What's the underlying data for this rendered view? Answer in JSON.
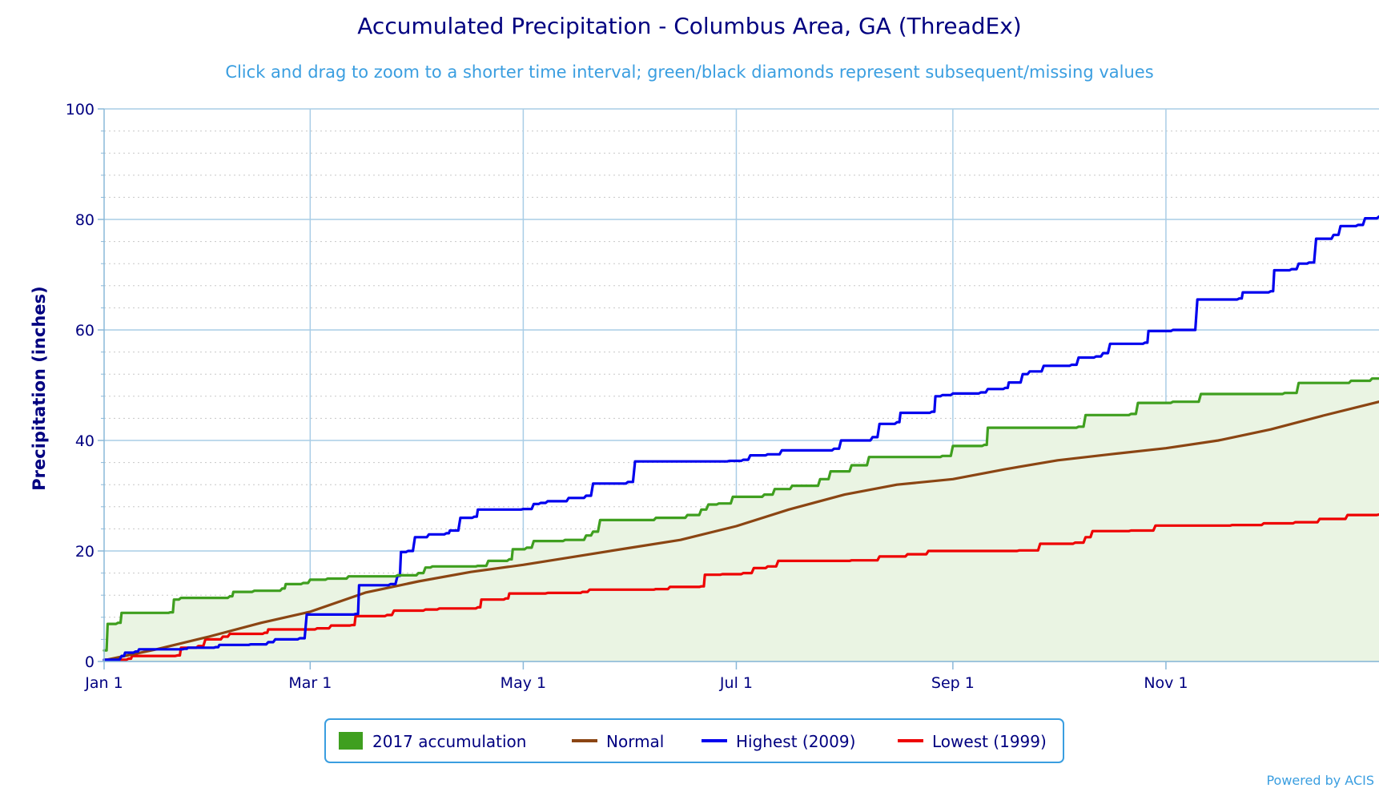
{
  "chart_data": {
    "type": "line",
    "title": "Accumulated Precipitation - Columbus Area, GA (ThreadEx)",
    "subtitle": "Click and drag to zoom to a shorter time interval; green/black diamonds represent subsequent/missing values",
    "ylabel": "Precipitation (inches)",
    "xlabel": "",
    "ylim": [
      0,
      100
    ],
    "y_ticks": [
      0,
      20,
      40,
      60,
      80,
      100
    ],
    "x_ticks": [
      {
        "label": "Jan 1",
        "day": 0
      },
      {
        "label": "Mar 1",
        "day": 59
      },
      {
        "label": "May 1",
        "day": 120
      },
      {
        "label": "Jul 1",
        "day": 181
      },
      {
        "label": "Sep 1",
        "day": 243
      },
      {
        "label": "Nov 1",
        "day": 304
      }
    ],
    "xlim_days": [
      0,
      365
    ],
    "grid": true,
    "legend_position": "bottom-center",
    "series": [
      {
        "name": "2017 accumulation",
        "style": "area-step",
        "color": "#3f9f1f",
        "fill": "#eaf4e3",
        "points": [
          [
            0,
            2
          ],
          [
            1,
            6.8
          ],
          [
            4,
            7
          ],
          [
            5,
            8.8
          ],
          [
            19,
            8.9
          ],
          [
            20,
            11.2
          ],
          [
            22,
            11.5
          ],
          [
            36,
            11.8
          ],
          [
            37,
            12.6
          ],
          [
            43,
            12.8
          ],
          [
            51,
            13.2
          ],
          [
            52,
            14
          ],
          [
            57,
            14.2
          ],
          [
            59,
            14.8
          ],
          [
            64,
            15
          ],
          [
            70,
            15.4
          ],
          [
            84,
            15.6
          ],
          [
            90,
            16
          ],
          [
            92,
            17
          ],
          [
            94,
            17.2
          ],
          [
            107,
            17.3
          ],
          [
            110,
            18.2
          ],
          [
            116,
            18.5
          ],
          [
            117,
            20.3
          ],
          [
            121,
            20.6
          ],
          [
            123,
            21.8
          ],
          [
            132,
            22
          ],
          [
            138,
            22.8
          ],
          [
            140,
            23.5
          ],
          [
            142,
            25.6
          ],
          [
            158,
            26
          ],
          [
            167,
            26.5
          ],
          [
            171,
            27.5
          ],
          [
            173,
            28.4
          ],
          [
            176,
            28.6
          ],
          [
            180,
            29.8
          ],
          [
            189,
            30.2
          ],
          [
            192,
            31.2
          ],
          [
            197,
            31.8
          ],
          [
            205,
            33
          ],
          [
            208,
            34.4
          ],
          [
            214,
            35.5
          ],
          [
            219,
            37
          ],
          [
            240,
            37.2
          ],
          [
            243,
            39
          ],
          [
            252,
            39.2
          ],
          [
            253,
            42.3
          ],
          [
            279,
            42.5
          ],
          [
            281,
            44.6
          ],
          [
            294,
            44.8
          ],
          [
            296,
            46.8
          ],
          [
            306,
            47
          ],
          [
            314,
            48.4
          ],
          [
            338,
            48.6
          ],
          [
            342,
            50.4
          ],
          [
            357,
            50.8
          ],
          [
            363,
            51.2
          ],
          [
            365,
            51.2
          ]
        ]
      },
      {
        "name": "Normal",
        "style": "line",
        "color": "#8b4513",
        "points": [
          [
            0,
            0.2
          ],
          [
            15,
            2.2
          ],
          [
            30,
            4.5
          ],
          [
            45,
            7
          ],
          [
            59,
            9
          ],
          [
            75,
            12.5
          ],
          [
            90,
            14.5
          ],
          [
            105,
            16.2
          ],
          [
            120,
            17.5
          ],
          [
            135,
            19
          ],
          [
            150,
            20.5
          ],
          [
            165,
            22
          ],
          [
            181,
            24.5
          ],
          [
            196,
            27.5
          ],
          [
            212,
            30.2
          ],
          [
            227,
            32
          ],
          [
            243,
            33
          ],
          [
            258,
            34.8
          ],
          [
            273,
            36.4
          ],
          [
            288,
            37.5
          ],
          [
            304,
            38.6
          ],
          [
            319,
            40
          ],
          [
            334,
            42
          ],
          [
            349,
            44.5
          ],
          [
            365,
            47
          ]
        ]
      },
      {
        "name": "Highest (2009)",
        "style": "step",
        "color": "#0000ee",
        "points": [
          [
            0,
            0.3
          ],
          [
            5,
            1
          ],
          [
            6,
            1.6
          ],
          [
            9,
            1.8
          ],
          [
            10,
            2.2
          ],
          [
            23,
            2.3
          ],
          [
            24,
            2.5
          ],
          [
            32,
            2.6
          ],
          [
            33,
            3
          ],
          [
            42,
            3.1
          ],
          [
            47,
            3.5
          ],
          [
            49,
            4
          ],
          [
            56,
            4.2
          ],
          [
            58,
            8.5
          ],
          [
            72,
            8.6
          ],
          [
            73,
            13.8
          ],
          [
            82,
            14
          ],
          [
            84,
            15.5
          ],
          [
            85,
            19.8
          ],
          [
            87,
            20
          ],
          [
            89,
            22.5
          ],
          [
            93,
            23
          ],
          [
            98,
            23.2
          ],
          [
            99,
            23.7
          ],
          [
            102,
            26
          ],
          [
            106,
            26.2
          ],
          [
            107,
            27.5
          ],
          [
            120,
            27.6
          ],
          [
            123,
            28.5
          ],
          [
            125,
            28.7
          ],
          [
            127,
            29
          ],
          [
            133,
            29.6
          ],
          [
            138,
            30
          ],
          [
            140,
            32.2
          ],
          [
            150,
            32.5
          ],
          [
            152,
            36.2
          ],
          [
            179,
            36.3
          ],
          [
            183,
            36.5
          ],
          [
            185,
            37.3
          ],
          [
            190,
            37.5
          ],
          [
            194,
            38.2
          ],
          [
            209,
            38.5
          ],
          [
            211,
            40
          ],
          [
            220,
            40.6
          ],
          [
            222,
            43
          ],
          [
            227,
            43.3
          ],
          [
            228,
            45
          ],
          [
            237,
            45.2
          ],
          [
            238,
            48
          ],
          [
            240,
            48.2
          ],
          [
            243,
            48.5
          ],
          [
            251,
            48.7
          ],
          [
            253,
            49.3
          ],
          [
            258,
            49.5
          ],
          [
            259,
            50.5
          ],
          [
            263,
            52
          ],
          [
            265,
            52.5
          ],
          [
            269,
            53.5
          ],
          [
            277,
            53.7
          ],
          [
            279,
            55
          ],
          [
            284,
            55.2
          ],
          [
            286,
            55.8
          ],
          [
            288,
            57.5
          ],
          [
            298,
            57.7
          ],
          [
            299,
            59.8
          ],
          [
            306,
            60
          ],
          [
            313,
            65.5
          ],
          [
            325,
            65.7
          ],
          [
            326,
            66.8
          ],
          [
            334,
            67
          ],
          [
            335,
            70.8
          ],
          [
            340,
            71
          ],
          [
            342,
            72
          ],
          [
            345,
            72.2
          ],
          [
            347,
            76.5
          ],
          [
            352,
            77.2
          ],
          [
            354,
            78.8
          ],
          [
            359,
            79
          ],
          [
            361,
            80.2
          ],
          [
            365,
            80.5
          ]
        ]
      },
      {
        "name": "Lowest (1999)",
        "style": "step",
        "color": "#ee0000",
        "points": [
          [
            0,
            0.3
          ],
          [
            7,
            0.5
          ],
          [
            8,
            1
          ],
          [
            21,
            1.1
          ],
          [
            22,
            2.5
          ],
          [
            27,
            2.8
          ],
          [
            29,
            4
          ],
          [
            34,
            4.5
          ],
          [
            36,
            5
          ],
          [
            46,
            5.2
          ],
          [
            47,
            5.8
          ],
          [
            61,
            6
          ],
          [
            65,
            6.5
          ],
          [
            71,
            6.6
          ],
          [
            72,
            8.2
          ],
          [
            81,
            8.4
          ],
          [
            83,
            9.2
          ],
          [
            92,
            9.4
          ],
          [
            96,
            9.6
          ],
          [
            107,
            9.8
          ],
          [
            108,
            11.2
          ],
          [
            115,
            11.4
          ],
          [
            116,
            12.3
          ],
          [
            127,
            12.4
          ],
          [
            137,
            12.6
          ],
          [
            139,
            13
          ],
          [
            158,
            13.1
          ],
          [
            162,
            13.5
          ],
          [
            171,
            13.6
          ],
          [
            172,
            15.7
          ],
          [
            177,
            15.8
          ],
          [
            183,
            16
          ],
          [
            186,
            16.9
          ],
          [
            190,
            17.2
          ],
          [
            193,
            18.2
          ],
          [
            214,
            18.3
          ],
          [
            222,
            19
          ],
          [
            230,
            19.4
          ],
          [
            236,
            20
          ],
          [
            262,
            20.1
          ],
          [
            268,
            21.3
          ],
          [
            278,
            21.5
          ],
          [
            281,
            22.5
          ],
          [
            283,
            23.6
          ],
          [
            294,
            23.7
          ],
          [
            301,
            24.6
          ],
          [
            323,
            24.7
          ],
          [
            332,
            25
          ],
          [
            341,
            25.2
          ],
          [
            348,
            25.8
          ],
          [
            356,
            26.5
          ],
          [
            365,
            26.6
          ]
        ]
      }
    ]
  },
  "credit": "Powered by ACIS"
}
